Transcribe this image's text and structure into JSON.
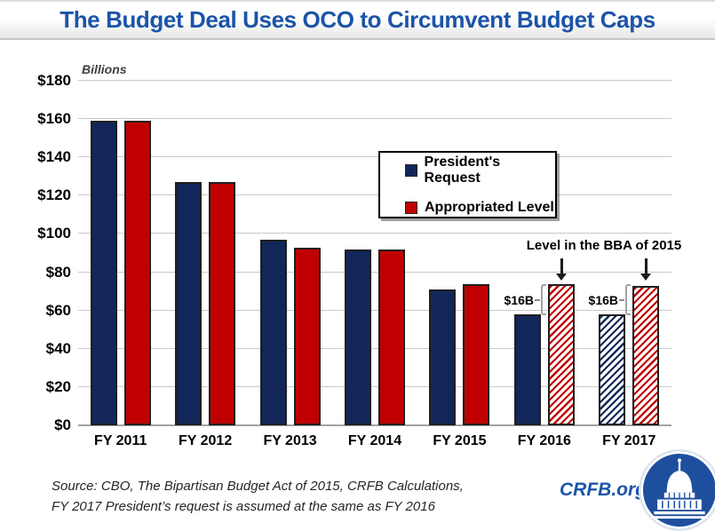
{
  "window": {
    "title": "The Budget Deal Uses OCO to Circumvent Budget Caps"
  },
  "chart_data": {
    "type": "bar",
    "title": "The Budget Deal Uses OCO to Circumvent Budget Caps",
    "unit_label": "Billions",
    "categories": [
      "FY 2011",
      "FY 2012",
      "FY 2013",
      "FY 2014",
      "FY 2015",
      "FY 2016",
      "FY 2017"
    ],
    "series": [
      {
        "name": "President's Request",
        "color": "#12265A",
        "values": [
          159,
          127,
          97,
          92,
          71,
          58,
          58
        ],
        "hatched": [
          false,
          false,
          false,
          false,
          false,
          false,
          true
        ]
      },
      {
        "name": "Appropriated Level",
        "color": "#C00000",
        "values": [
          159,
          127,
          93,
          92,
          74,
          74,
          73
        ],
        "hatched": [
          false,
          false,
          false,
          false,
          false,
          true,
          true
        ]
      }
    ],
    "ylim": [
      0,
      180
    ],
    "ytick_step": 20,
    "ytick_labels": [
      "$0",
      "$20",
      "$40",
      "$60",
      "$80",
      "$100",
      "$120",
      "$140",
      "$160",
      "$180"
    ],
    "grid": true,
    "legend_position": "upper-right"
  },
  "annotations": {
    "bba_label": "Level in the BBA of 2015",
    "gap_2016": "$16B",
    "gap_2017": "$16B"
  },
  "footer": {
    "source_line_1": "Source: CBO, The Bipartisan Budget Act of 2015, CRFB Calculations,",
    "source_line_2": "FY 2017 President’s request is assumed at the same as FY 2016",
    "logo_text": "CRFB.org"
  },
  "icons": {
    "bba_arrow": "down-arrow",
    "logo": "capitol-building"
  },
  "colors": {
    "title_blue": "#1B54A8",
    "navy": "#12265A",
    "red": "#C00000",
    "grid_gray": "#C9C9C9",
    "bracket_gray": "#A3A3A3"
  }
}
